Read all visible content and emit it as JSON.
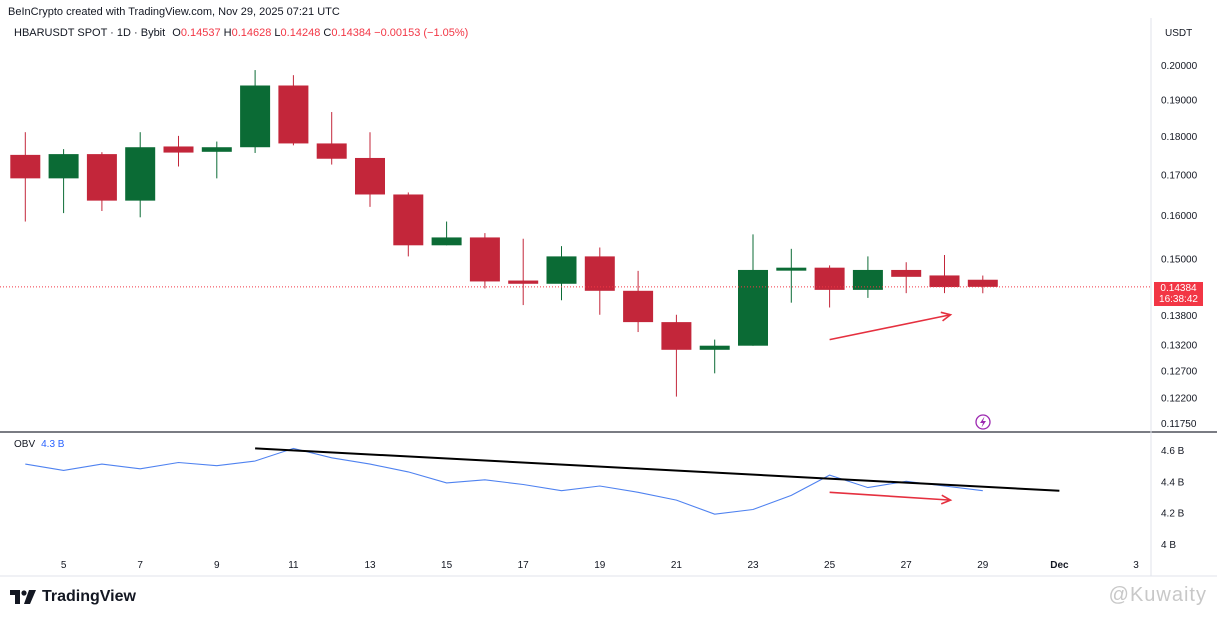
{
  "header": {
    "credit": "BeInCrypto created with TradingView.com, Nov 29, 2025 07:21 UTC"
  },
  "legend": {
    "symbol": "HBARUSDT SPOT · 1D · Bybit",
    "open_key": "O",
    "open": "0.14537",
    "high_key": "H",
    "high": "0.14628",
    "low_key": "L",
    "low": "0.14248",
    "close_key": "C",
    "close": "0.14384",
    "change": "−0.00153 (−1.05%)"
  },
  "currency": "USDT",
  "current_price": {
    "price": "0.14384",
    "countdown": "16:38:42"
  },
  "obv_legend": {
    "name": "OBV",
    "value": "4.3 B"
  },
  "brand": "TradingView",
  "watermark": "@Kuwaity",
  "colors": {
    "up": "#0b6b35",
    "down": "#c3263a",
    "obv": "#4f82f0",
    "trend": "#000000",
    "arrow": "#e5303f"
  },
  "chart_data": {
    "type": "candlestick",
    "x_ticks": [
      "5",
      "7",
      "9",
      "11",
      "13",
      "15",
      "17",
      "19",
      "21",
      "23",
      "25",
      "27",
      "29",
      "Dec",
      "3"
    ],
    "price_axis_ticks": [
      "0.20000",
      "0.19000",
      "0.18000",
      "0.17000",
      "0.16000",
      "0.15000",
      "0.13800",
      "0.13200",
      "0.12700",
      "0.12200",
      "0.11750"
    ],
    "price_scale": "log",
    "obv_axis_ticks": [
      "4.6 B",
      "4.4 B",
      "4.2 B",
      "4 B"
    ],
    "candles": [
      {
        "day": "4",
        "o": 0.175,
        "h": 0.181,
        "l": 0.1585,
        "c": 0.169
      },
      {
        "day": "5",
        "o": 0.169,
        "h": 0.1765,
        "l": 0.1605,
        "c": 0.1752
      },
      {
        "day": "6",
        "o": 0.1752,
        "h": 0.1757,
        "l": 0.161,
        "c": 0.1635
      },
      {
        "day": "7",
        "o": 0.1635,
        "h": 0.181,
        "l": 0.1595,
        "c": 0.177
      },
      {
        "day": "8",
        "o": 0.1772,
        "h": 0.18,
        "l": 0.172,
        "c": 0.1756
      },
      {
        "day": "9",
        "o": 0.1758,
        "h": 0.1785,
        "l": 0.169,
        "c": 0.177
      },
      {
        "day": "10",
        "o": 0.177,
        "h": 0.1985,
        "l": 0.1755,
        "c": 0.194
      },
      {
        "day": "11",
        "o": 0.194,
        "h": 0.197,
        "l": 0.1775,
        "c": 0.178
      },
      {
        "day": "12",
        "o": 0.178,
        "h": 0.1865,
        "l": 0.1725,
        "c": 0.174
      },
      {
        "day": "13",
        "o": 0.1742,
        "h": 0.181,
        "l": 0.162,
        "c": 0.165
      },
      {
        "day": "14",
        "o": 0.165,
        "h": 0.1655,
        "l": 0.1505,
        "c": 0.153
      },
      {
        "day": "15",
        "o": 0.153,
        "h": 0.1585,
        "l": 0.153,
        "c": 0.1548
      },
      {
        "day": "16",
        "o": 0.1548,
        "h": 0.1558,
        "l": 0.1435,
        "c": 0.145
      },
      {
        "day": "17",
        "o": 0.1452,
        "h": 0.1545,
        "l": 0.14,
        "c": 0.1445
      },
      {
        "day": "18",
        "o": 0.1445,
        "h": 0.1528,
        "l": 0.141,
        "c": 0.1505
      },
      {
        "day": "19",
        "o": 0.1505,
        "h": 0.1525,
        "l": 0.138,
        "c": 0.143
      },
      {
        "day": "20",
        "o": 0.143,
        "h": 0.1473,
        "l": 0.1345,
        "c": 0.1365
      },
      {
        "day": "21",
        "o": 0.1365,
        "h": 0.138,
        "l": 0.1222,
        "c": 0.131
      },
      {
        "day": "22",
        "o": 0.131,
        "h": 0.133,
        "l": 0.1265,
        "c": 0.1318
      },
      {
        "day": "23",
        "o": 0.1318,
        "h": 0.1555,
        "l": 0.1318,
        "c": 0.1475
      },
      {
        "day": "24",
        "o": 0.1475,
        "h": 0.1522,
        "l": 0.1405,
        "c": 0.148
      },
      {
        "day": "25",
        "o": 0.148,
        "h": 0.1485,
        "l": 0.1395,
        "c": 0.1432
      },
      {
        "day": "26",
        "o": 0.1432,
        "h": 0.1505,
        "l": 0.1415,
        "c": 0.1475
      },
      {
        "day": "27",
        "o": 0.1475,
        "h": 0.1492,
        "l": 0.1425,
        "c": 0.146
      },
      {
        "day": "28",
        "o": 0.1463,
        "h": 0.1508,
        "l": 0.1425,
        "c": 0.1438
      },
      {
        "day": "29",
        "o": 0.14537,
        "h": 0.14628,
        "l": 0.14248,
        "c": 0.14384
      }
    ],
    "obv_billions": [
      4.51,
      4.47,
      4.51,
      4.48,
      4.52,
      4.5,
      4.53,
      4.61,
      4.55,
      4.51,
      4.46,
      4.39,
      4.41,
      4.38,
      4.34,
      4.37,
      4.33,
      4.28,
      4.19,
      4.22,
      4.31,
      4.44,
      4.36,
      4.4,
      4.37,
      4.34
    ],
    "obv_trendline_billions": {
      "from_day": "10",
      "from_obv": 4.61,
      "to_day": "Dec 1",
      "to_obv": 4.34
    },
    "annotations": [
      {
        "type": "arrow",
        "panel": "price",
        "direction": "up",
        "from_price": 0.133,
        "to_price": 0.138,
        "from_day": "25",
        "to_day": "28"
      },
      {
        "type": "arrow",
        "panel": "obv",
        "direction": "down",
        "from_obv": 4.33,
        "to_obv": 4.28,
        "from_day": "25",
        "to_day": "28"
      }
    ]
  }
}
